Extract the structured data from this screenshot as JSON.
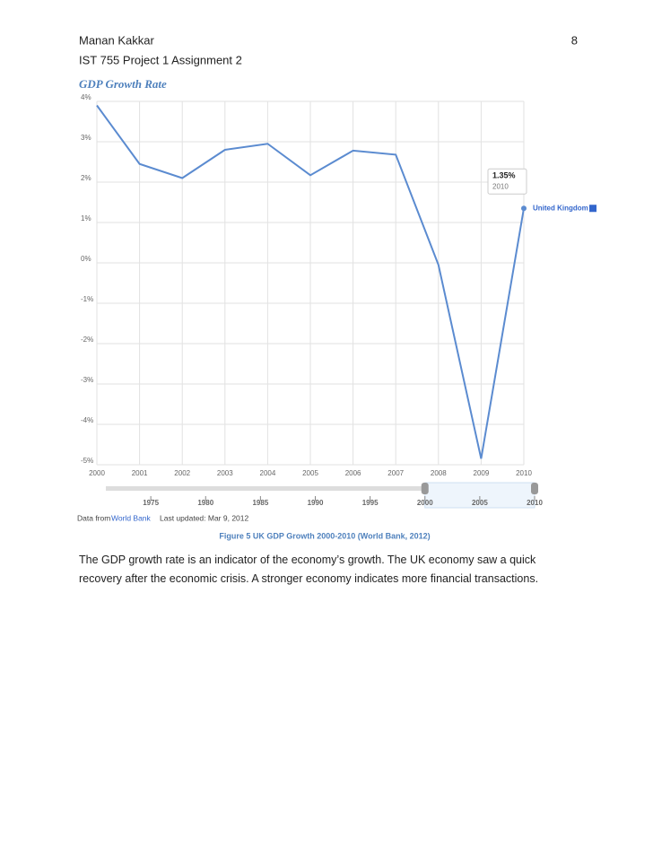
{
  "header": {
    "author": "Manan Kakkar",
    "page_number": "8",
    "subtitle": "IST 755 Project 1 Assignment 2"
  },
  "section_title": "GDP Growth Rate",
  "chart_data": {
    "type": "line",
    "x": [
      2000,
      2001,
      2002,
      2003,
      2004,
      2005,
      2006,
      2007,
      2008,
      2009,
      2010
    ],
    "xlim": [
      2000,
      2010
    ],
    "xticks": [
      2000,
      2001,
      2002,
      2003,
      2004,
      2005,
      2006,
      2007,
      2008,
      2009,
      2010
    ],
    "ylim": [
      -5,
      4
    ],
    "yticks": [
      {
        "value": 4,
        "label": "4%"
      },
      {
        "value": 3,
        "label": "3%"
      },
      {
        "value": 2,
        "label": "2%"
      },
      {
        "value": 1,
        "label": "1%"
      },
      {
        "value": 0,
        "label": "0%"
      },
      {
        "value": -1,
        "label": "-1%"
      },
      {
        "value": -2,
        "label": "-2%"
      },
      {
        "value": -3,
        "label": "-3%"
      },
      {
        "value": -4,
        "label": "-4%"
      },
      {
        "value": -5,
        "label": "-5%"
      }
    ],
    "grid": true,
    "series": [
      {
        "name": "United Kingdom",
        "color": "#5b8bd0",
        "values": [
          3.9,
          2.45,
          2.1,
          2.8,
          2.95,
          2.17,
          2.78,
          2.68,
          -0.05,
          -4.85,
          1.35
        ]
      }
    ],
    "tooltip_label": "1.35%",
    "navigator_xlim": [
      1970,
      2010
    ],
    "navigator_ticks": [
      1975,
      1980,
      1985,
      1990,
      1995,
      2000,
      2005,
      2010
    ],
    "source_prefix": "Data from",
    "source": "World Bank",
    "last_updated": "Last updated: Mar 9, 2012"
  },
  "caption": "Figure 5 UK GDP Growth 2000-2010 (World Bank, 2012)",
  "paragraph": "The GDP growth rate is an indicator of the economy’s growth. The UK economy saw a quick recovery after the economic crisis. A stronger economy indicates more financial transactions."
}
